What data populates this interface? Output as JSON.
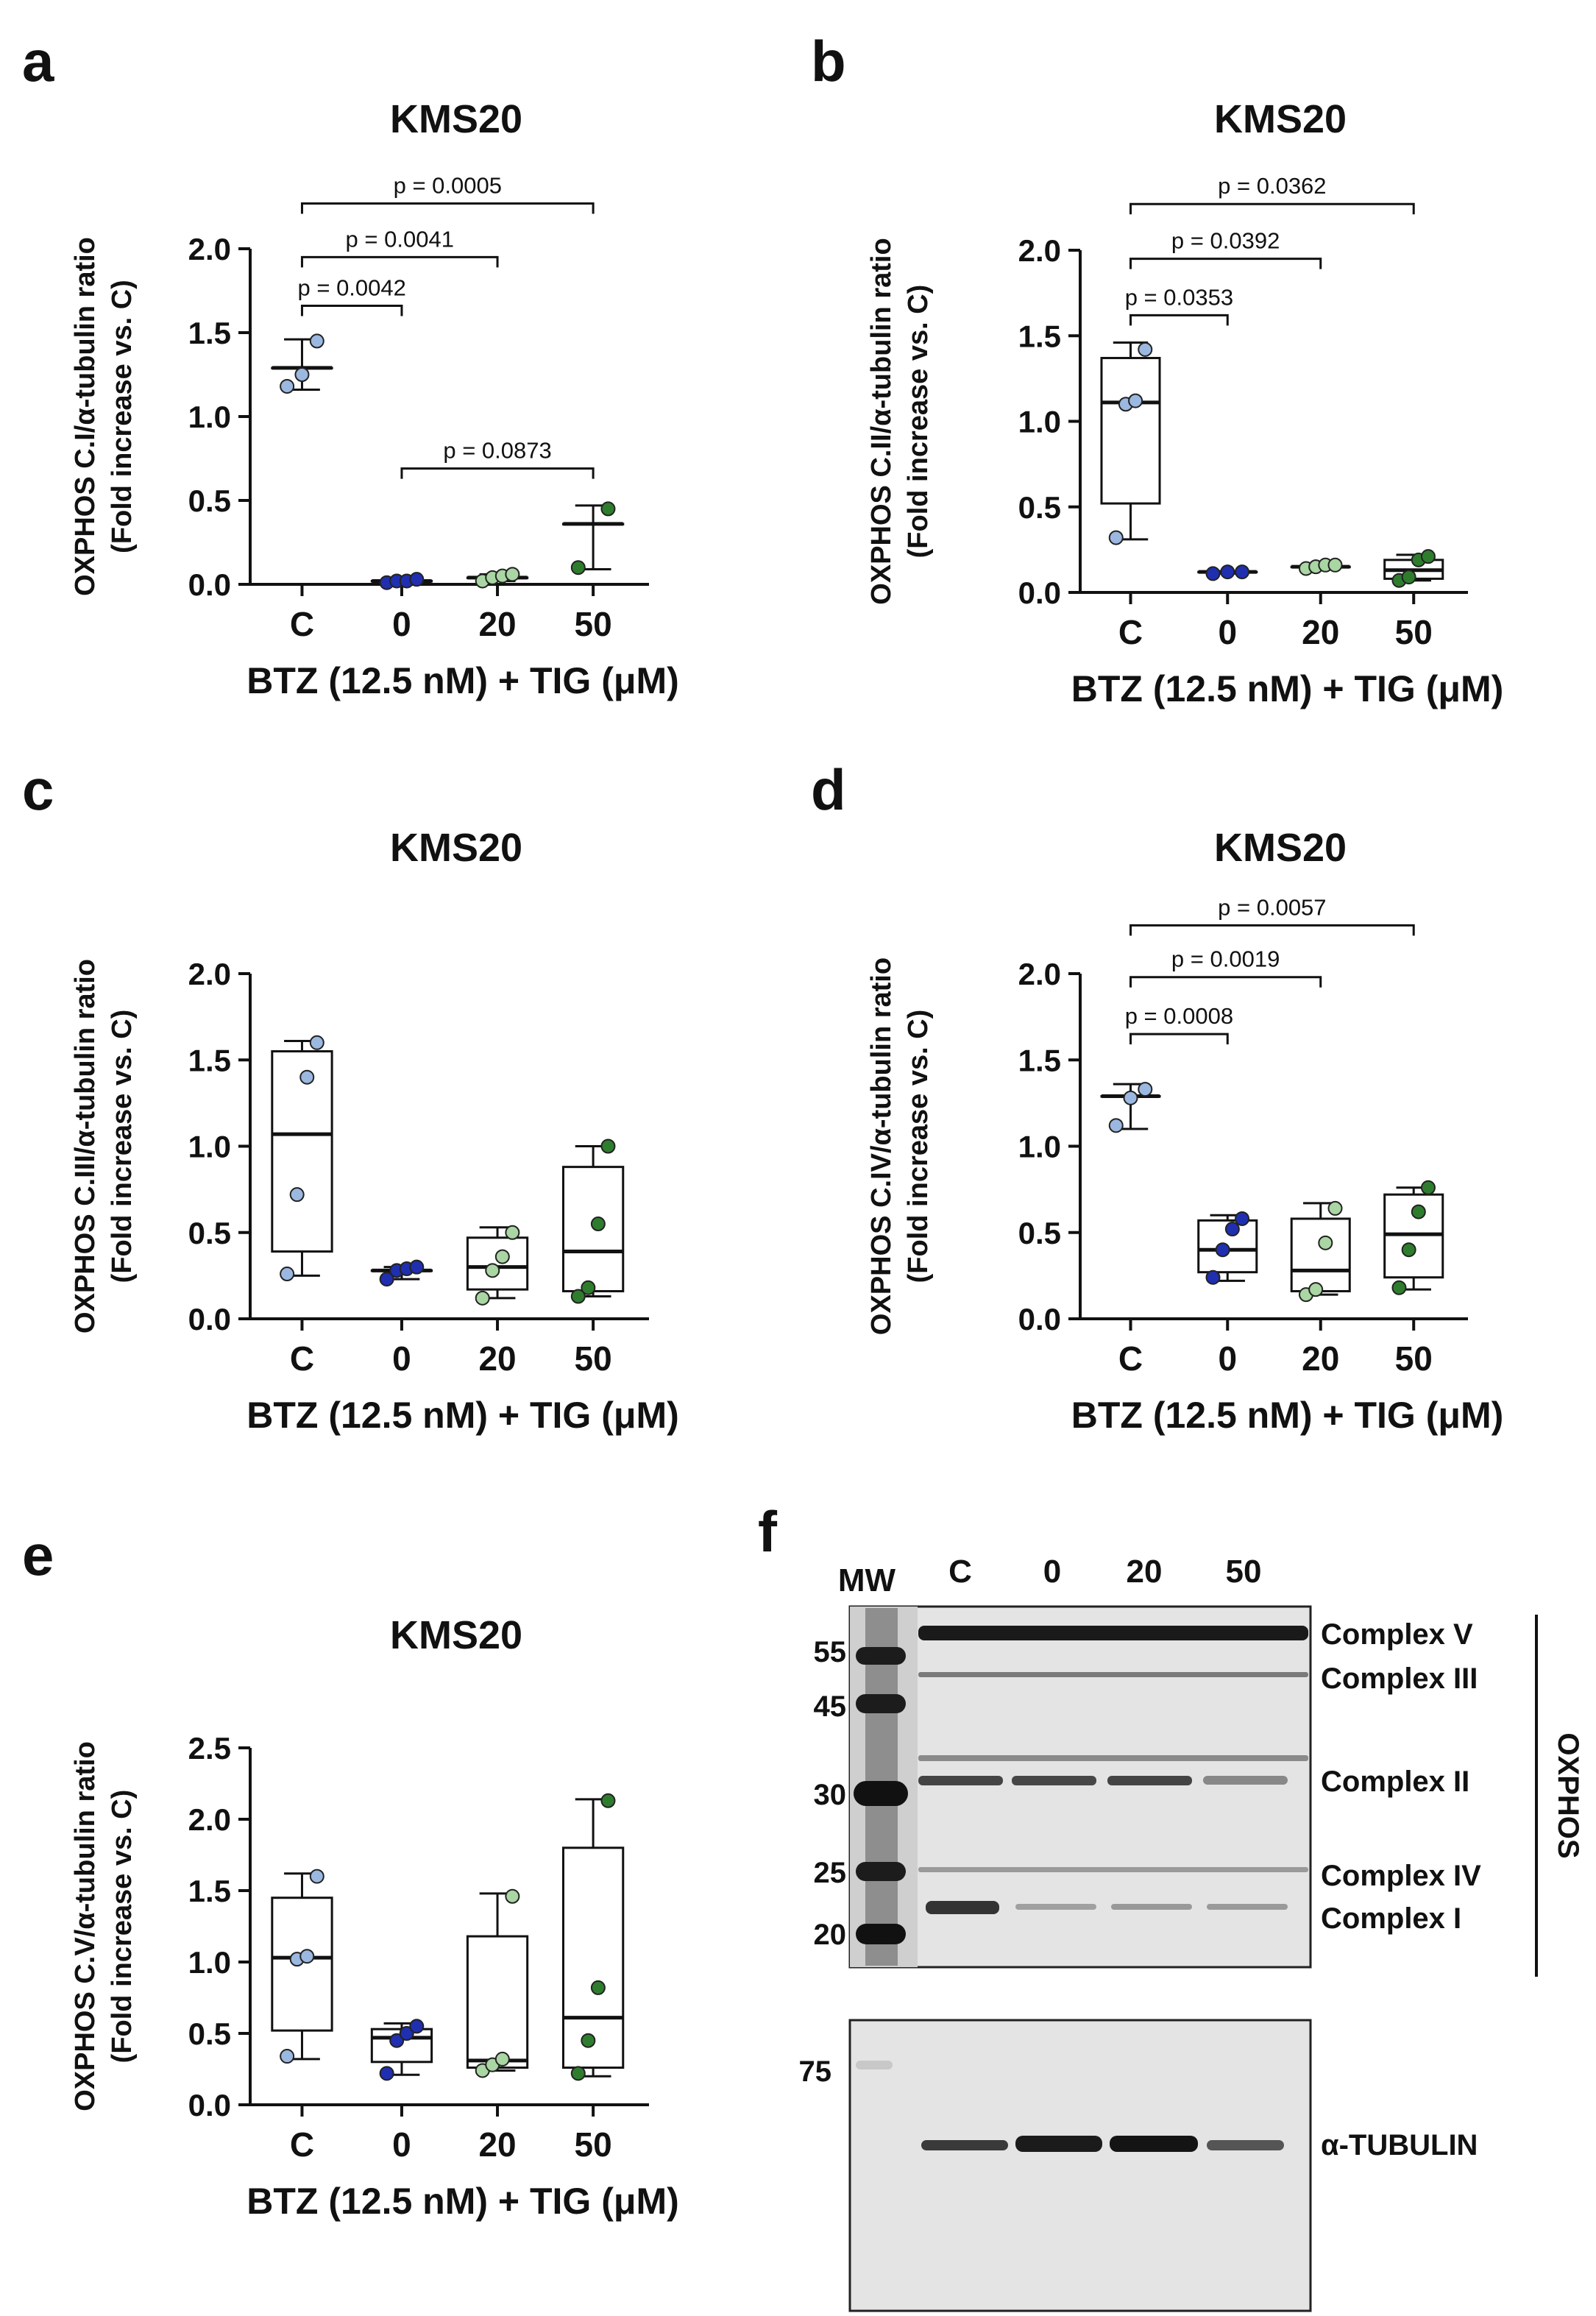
{
  "colors": {
    "control": "#9bb8e0",
    "tig0": "#1f2fb0",
    "tig20": "#a9d6a3",
    "tig50": "#2e7d2e",
    "axis": "#111111"
  },
  "chart_data": [
    {
      "id": "a",
      "panel_label": "a",
      "type": "boxplot",
      "title": "KMS20",
      "ylabel_lines": [
        "OXPHOS C.I/α-tubulin ratio",
        "(Fold increase vs. C)"
      ],
      "xlabel": "BTZ (12.5 nM) + TIG (μM)",
      "categories": [
        "C",
        "0",
        "20",
        "50"
      ],
      "ylim": [
        0,
        2.0
      ],
      "yticks": [
        "0.0",
        "0.5",
        "1.0",
        "1.5",
        "2.0"
      ],
      "series": [
        {
          "category": "C",
          "points": [
            1.18,
            1.25,
            1.45
          ],
          "min": 1.16,
          "q1": 1.29,
          "median": 1.29,
          "q3": 1.29,
          "max": 1.46
        },
        {
          "category": "0",
          "points": [
            0.01,
            0.02,
            0.02,
            0.03
          ],
          "min": 0.01,
          "q1": 0.02,
          "median": 0.02,
          "q3": 0.02,
          "max": 0.03
        },
        {
          "category": "20",
          "points": [
            0.02,
            0.04,
            0.05,
            0.06
          ],
          "min": 0.02,
          "q1": 0.04,
          "median": 0.04,
          "q3": 0.04,
          "max": 0.06
        },
        {
          "category": "50",
          "points": [
            0.1,
            0.45
          ],
          "min": 0.09,
          "q1": 0.36,
          "median": 0.36,
          "q3": 0.36,
          "max": 0.47
        }
      ],
      "comparisons": [
        {
          "from": "C",
          "to": "0",
          "label": "p = 0.0042",
          "level": 1.66
        },
        {
          "from": "C",
          "to": "20",
          "label": "p = 0.0041",
          "level": 1.95
        },
        {
          "from": "C",
          "to": "50",
          "label": "p = 0.0005",
          "level": 2.27
        },
        {
          "from": "0",
          "to": "50",
          "label": "p = 0.0873",
          "level": 0.69
        }
      ]
    },
    {
      "id": "b",
      "panel_label": "b",
      "type": "boxplot",
      "title": "KMS20",
      "ylabel_lines": [
        "OXPHOS C.II/α-tubulin ratio",
        "(Fold increase vs. C)"
      ],
      "xlabel": "BTZ (12.5 nM) + TIG (μM)",
      "categories": [
        "C",
        "0",
        "20",
        "50"
      ],
      "ylim": [
        0,
        2.0
      ],
      "yticks": [
        "0.0",
        "0.5",
        "1.0",
        "1.5",
        "2.0"
      ],
      "series": [
        {
          "category": "C",
          "points": [
            0.32,
            1.1,
            1.12,
            1.42
          ],
          "min": 0.31,
          "q1": 0.52,
          "median": 1.11,
          "q3": 1.37,
          "max": 1.46
        },
        {
          "category": "0",
          "points": [
            0.11,
            0.12,
            0.12
          ],
          "min": 0.11,
          "q1": 0.12,
          "median": 0.12,
          "q3": 0.12,
          "max": 0.12
        },
        {
          "category": "20",
          "points": [
            0.14,
            0.15,
            0.16,
            0.16
          ],
          "min": 0.14,
          "q1": 0.15,
          "median": 0.15,
          "q3": 0.15,
          "max": 0.17
        },
        {
          "category": "50",
          "points": [
            0.07,
            0.09,
            0.19,
            0.21
          ],
          "min": 0.07,
          "q1": 0.08,
          "median": 0.13,
          "q3": 0.19,
          "max": 0.22
        }
      ],
      "comparisons": [
        {
          "from": "C",
          "to": "0",
          "label": "p = 0.0353",
          "level": 1.62
        },
        {
          "from": "C",
          "to": "20",
          "label": "p = 0.0392",
          "level": 1.95
        },
        {
          "from": "C",
          "to": "50",
          "label": "p = 0.0362",
          "level": 2.27
        }
      ]
    },
    {
      "id": "c",
      "panel_label": "c",
      "type": "boxplot",
      "title": "KMS20",
      "ylabel_lines": [
        "OXPHOS C.III/α-tubulin ratio",
        "(Fold increase vs. C)"
      ],
      "xlabel": "BTZ (12.5 nM) + TIG (μM)",
      "categories": [
        "C",
        "0",
        "20",
        "50"
      ],
      "ylim": [
        0,
        2.0
      ],
      "yticks": [
        "0.0",
        "0.5",
        "1.0",
        "1.5",
        "2.0"
      ],
      "series": [
        {
          "category": "C",
          "points": [
            0.26,
            0.72,
            1.4,
            1.6
          ],
          "min": 0.25,
          "q1": 0.39,
          "median": 1.07,
          "q3": 1.55,
          "max": 1.61
        },
        {
          "category": "0",
          "points": [
            0.23,
            0.28,
            0.29,
            0.3
          ],
          "min": 0.23,
          "q1": 0.28,
          "median": 0.28,
          "q3": 0.28,
          "max": 0.3
        },
        {
          "category": "20",
          "points": [
            0.12,
            0.28,
            0.36,
            0.5
          ],
          "min": 0.12,
          "q1": 0.17,
          "median": 0.3,
          "q3": 0.47,
          "max": 0.53
        },
        {
          "category": "50",
          "points": [
            0.13,
            0.18,
            0.55,
            1.0
          ],
          "min": 0.13,
          "q1": 0.16,
          "median": 0.39,
          "q3": 0.88,
          "max": 1.0
        }
      ],
      "comparisons": []
    },
    {
      "id": "d",
      "panel_label": "d",
      "type": "boxplot",
      "title": "KMS20",
      "ylabel_lines": [
        "OXPHOS C.IV/α-tubulin ratio",
        "(Fold increase vs. C)"
      ],
      "xlabel": "BTZ (12.5 nM) + TIG (μM)",
      "categories": [
        "C",
        "0",
        "20",
        "50"
      ],
      "ylim": [
        0,
        2.0
      ],
      "yticks": [
        "0.0",
        "0.5",
        "1.0",
        "1.5",
        "2.0"
      ],
      "series": [
        {
          "category": "C",
          "points": [
            1.12,
            1.28,
            1.33
          ],
          "min": 1.1,
          "q1": 1.29,
          "median": 1.29,
          "q3": 1.29,
          "max": 1.36
        },
        {
          "category": "0",
          "points": [
            0.24,
            0.4,
            0.52,
            0.58
          ],
          "min": 0.22,
          "q1": 0.27,
          "median": 0.4,
          "q3": 0.57,
          "max": 0.6
        },
        {
          "category": "20",
          "points": [
            0.14,
            0.17,
            0.44,
            0.64
          ],
          "min": 0.14,
          "q1": 0.16,
          "median": 0.28,
          "q3": 0.58,
          "max": 0.67
        },
        {
          "category": "50",
          "points": [
            0.18,
            0.4,
            0.62,
            0.76
          ],
          "min": 0.17,
          "q1": 0.24,
          "median": 0.49,
          "q3": 0.72,
          "max": 0.76
        }
      ],
      "comparisons": [
        {
          "from": "C",
          "to": "0",
          "label": "p = 0.0008",
          "level": 1.65
        },
        {
          "from": "C",
          "to": "20",
          "label": "p = 0.0019",
          "level": 1.98
        },
        {
          "from": "C",
          "to": "50",
          "label": "p = 0.0057",
          "level": 2.28
        }
      ]
    },
    {
      "id": "e",
      "panel_label": "e",
      "type": "boxplot",
      "title": "KMS20",
      "ylabel_lines": [
        "OXPHOS C.V/α-tubulin ratio",
        "(Fold increase vs. C)"
      ],
      "xlabel": "BTZ (12.5 nM) + TIG (μM)",
      "categories": [
        "C",
        "0",
        "20",
        "50"
      ],
      "ylim": [
        0,
        2.5
      ],
      "yticks": [
        "0.0",
        "0.5",
        "1.0",
        "1.5",
        "2.0",
        "2.5"
      ],
      "series": [
        {
          "category": "C",
          "points": [
            0.34,
            1.02,
            1.04,
            1.6
          ],
          "min": 0.32,
          "q1": 0.52,
          "median": 1.03,
          "q3": 1.45,
          "max": 1.62
        },
        {
          "category": "0",
          "points": [
            0.22,
            0.45,
            0.5,
            0.55
          ],
          "min": 0.21,
          "q1": 0.3,
          "median": 0.47,
          "q3": 0.53,
          "max": 0.57
        },
        {
          "category": "20",
          "points": [
            0.24,
            0.28,
            0.32,
            1.46
          ],
          "min": 0.24,
          "q1": 0.26,
          "median": 0.31,
          "q3": 1.18,
          "max": 1.48
        },
        {
          "category": "50",
          "points": [
            0.22,
            0.45,
            0.82,
            2.13
          ],
          "min": 0.2,
          "q1": 0.26,
          "median": 0.61,
          "q3": 1.8,
          "max": 2.14
        }
      ],
      "comparisons": []
    }
  ],
  "blot": {
    "panel_label": "f",
    "mw_header": "MW",
    "lanes": [
      "C",
      "0",
      "20",
      "50"
    ],
    "mw_markers": [
      "55",
      "45",
      "30",
      "25",
      "20"
    ],
    "mw_marker_lower": "75",
    "band_labels": [
      "Complex V",
      "Complex III",
      "Complex II",
      "Complex IV",
      "Complex I"
    ],
    "group_label": "OXPHOS",
    "tubulin_label": "α-TUBULIN"
  }
}
